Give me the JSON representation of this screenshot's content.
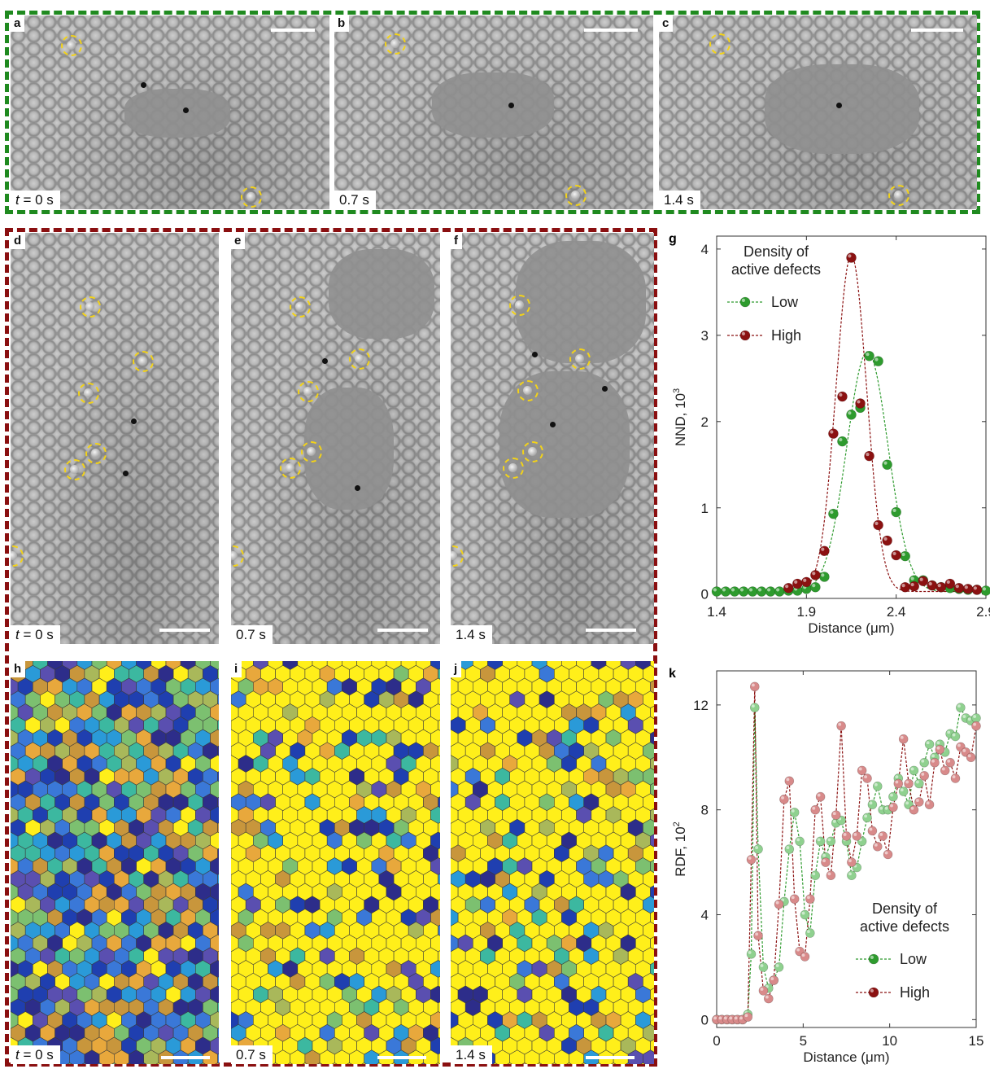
{
  "panels_top": [
    {
      "letter": "a",
      "time": "t = 0 s",
      "time_prefix": "t",
      "time_rest": " = 0 s"
    },
    {
      "letter": "b",
      "time": "0.7 s"
    },
    {
      "letter": "c",
      "time": "1.4 s"
    }
  ],
  "panels_mid": [
    {
      "letter": "d",
      "time_prefix": "t",
      "time_rest": " = 0 s"
    },
    {
      "letter": "e",
      "time": "0.7 s"
    },
    {
      "letter": "f",
      "time": "1.4 s"
    }
  ],
  "panels_bottom": [
    {
      "letter": "h",
      "time_prefix": "t",
      "time_rest": " = 0 s"
    },
    {
      "letter": "i",
      "time": "0.7 s"
    },
    {
      "letter": "j",
      "time": "1.4 s"
    }
  ],
  "colors": {
    "frame_top": "#1f8a1f",
    "frame_bottom": "#8a0f10",
    "defect_ring": "#f2d21a",
    "voronoi_hexagonal": "#ffef1a",
    "voronoi_palette": [
      "#1f3fb0",
      "#3a78d8",
      "#2a9ad8",
      "#3cb8a0",
      "#7cc070",
      "#a9b85a",
      "#e8a83c",
      "#c8963c",
      "#5a4fb0",
      "#2d2d8a"
    ]
  },
  "chart_data": [
    {
      "panel": "g",
      "type": "scatter",
      "xlabel": "Distance (μm)",
      "ylabel": "NND, 10",
      "ylabel_exp": "3",
      "xlim": [
        1.4,
        2.9
      ],
      "ylim": [
        -0.05,
        4.15
      ],
      "xticks": [
        "1.4",
        "1.9",
        "2.4",
        "2.9"
      ],
      "xtick_values": [
        1.4,
        1.9,
        2.4,
        2.9
      ],
      "yticks": [
        "0",
        "1",
        "2",
        "3",
        "4"
      ],
      "ytick_values": [
        0,
        1,
        2,
        3,
        4
      ],
      "legend_title_1": "Density of",
      "legend_title_2": "active defects",
      "legend_placement": "top-left",
      "series": [
        {
          "name": "Low",
          "color": "#2e9b2e",
          "x": [
            1.4,
            1.45,
            1.5,
            1.55,
            1.6,
            1.65,
            1.7,
            1.75,
            1.8,
            1.85,
            1.9,
            1.95,
            2.0,
            2.05,
            2.1,
            2.15,
            2.2,
            2.25,
            2.3,
            2.35,
            2.4,
            2.45,
            2.5,
            2.55,
            2.6,
            2.65,
            2.7,
            2.75,
            2.8,
            2.85,
            2.9
          ],
          "y": [
            0.03,
            0.03,
            0.03,
            0.03,
            0.03,
            0.03,
            0.03,
            0.03,
            0.04,
            0.04,
            0.06,
            0.08,
            0.2,
            0.93,
            1.77,
            2.08,
            2.16,
            2.76,
            2.7,
            1.5,
            0.95,
            0.44,
            0.16,
            0.16,
            0.1,
            0.08,
            0.07,
            0.06,
            0.05,
            0.05,
            0.04
          ],
          "fit_center": 2.24,
          "fit_amp": 2.78,
          "fit_sigma": 0.115
        },
        {
          "name": "High",
          "color": "#8b1111",
          "x": [
            1.8,
            1.85,
            1.9,
            1.95,
            2.0,
            2.05,
            2.1,
            2.15,
            2.2,
            2.25,
            2.3,
            2.35,
            2.4,
            2.45,
            2.5,
            2.55,
            2.6,
            2.65,
            2.7,
            2.75,
            2.8,
            2.85
          ],
          "y": [
            0.07,
            0.12,
            0.14,
            0.22,
            0.5,
            1.86,
            2.29,
            3.9,
            2.21,
            1.6,
            0.8,
            0.62,
            0.45,
            0.08,
            0.09,
            0.15,
            0.1,
            0.08,
            0.12,
            0.07,
            0.06,
            0.05
          ],
          "fit_center": 2.15,
          "fit_amp": 3.9,
          "fit_sigma": 0.085
        }
      ]
    },
    {
      "panel": "k",
      "type": "line",
      "xlabel": "Distance (μm)",
      "ylabel": "RDF, 10",
      "ylabel_exp": "2",
      "xlim": [
        0,
        15
      ],
      "ylim": [
        -0.3,
        13.3
      ],
      "xticks": [
        "0",
        "5",
        "10",
        "15"
      ],
      "xtick_values": [
        0,
        5,
        10,
        15
      ],
      "yticks": [
        "0",
        "4",
        "8",
        "12"
      ],
      "ytick_values": [
        0,
        4,
        8,
        12
      ],
      "legend_title_1": "Density of",
      "legend_title_2": "active defects",
      "legend_placement": "bottom-right",
      "series": [
        {
          "name": "Low",
          "color": "#2e9b2e",
          "x": [
            0.0,
            0.3,
            0.6,
            0.9,
            1.2,
            1.5,
            1.8,
            2.0,
            2.2,
            2.4,
            2.7,
            3.0,
            3.3,
            3.6,
            3.9,
            4.2,
            4.5,
            4.8,
            5.1,
            5.4,
            5.7,
            6.0,
            6.3,
            6.6,
            6.9,
            7.2,
            7.5,
            7.8,
            8.1,
            8.4,
            8.7,
            9.0,
            9.3,
            9.6,
            9.9,
            10.2,
            10.5,
            10.8,
            11.1,
            11.4,
            11.7,
            12.0,
            12.3,
            12.6,
            12.9,
            13.2,
            13.5,
            13.8,
            14.1,
            14.4,
            14.7,
            15.0
          ],
          "y": [
            0,
            0,
            0,
            0,
            0,
            0,
            0.2,
            2.5,
            11.9,
            6.5,
            2.0,
            1.2,
            1.5,
            2.0,
            4.5,
            6.5,
            7.9,
            6.8,
            4.0,
            3.3,
            5.5,
            6.8,
            6.2,
            6.8,
            7.5,
            7.6,
            6.8,
            5.5,
            5.8,
            6.8,
            7.7,
            8.2,
            8.9,
            8.0,
            8.0,
            8.5,
            9.2,
            8.7,
            8.2,
            9.5,
            9.0,
            9.8,
            10.5,
            10.0,
            10.5,
            10.2,
            10.9,
            10.8,
            11.9,
            11.5,
            11.4,
            11.5
          ]
        },
        {
          "name": "High",
          "color": "#8b1111",
          "x": [
            0.0,
            0.3,
            0.6,
            0.9,
            1.2,
            1.5,
            1.8,
            2.0,
            2.2,
            2.4,
            2.7,
            3.0,
            3.3,
            3.6,
            3.9,
            4.2,
            4.5,
            4.8,
            5.1,
            5.4,
            5.7,
            6.0,
            6.3,
            6.6,
            6.9,
            7.2,
            7.5,
            7.8,
            8.1,
            8.4,
            8.7,
            9.0,
            9.3,
            9.6,
            9.9,
            10.2,
            10.5,
            10.8,
            11.1,
            11.4,
            11.7,
            12.0,
            12.3,
            12.6,
            12.9,
            13.2,
            13.5,
            13.8,
            14.1,
            14.4,
            14.7,
            15.0
          ],
          "y": [
            0,
            0,
            0,
            0,
            0,
            0,
            0.1,
            6.1,
            12.7,
            3.2,
            1.1,
            0.8,
            1.5,
            4.4,
            8.4,
            9.1,
            4.6,
            2.6,
            2.4,
            4.6,
            8.0,
            8.5,
            6.0,
            5.5,
            7.8,
            11.2,
            7.0,
            6.0,
            7.0,
            9.5,
            9.2,
            7.2,
            6.6,
            7.0,
            6.3,
            8.1,
            9.0,
            10.7,
            9.0,
            8.0,
            8.3,
            9.3,
            8.2,
            9.8,
            10.3,
            9.5,
            9.8,
            9.2,
            10.4,
            10.2,
            10.0,
            11.2
          ]
        }
      ]
    }
  ]
}
